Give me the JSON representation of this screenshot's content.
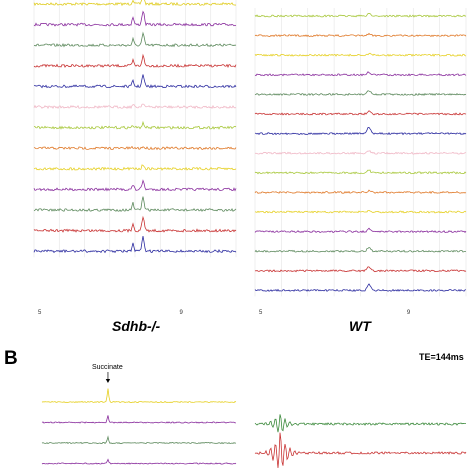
{
  "labels": {
    "sdhb": "Sdhb-/-",
    "wt": "WT",
    "panel_b": "B",
    "te": "TE=144ms",
    "succinate": "Succinate"
  },
  "chart_data": [
    {
      "type": "line",
      "panel": "A-left",
      "title": "Sdhb-/-",
      "x_ticks": [
        "5",
        "9"
      ],
      "grid": true,
      "series": [
        {
          "color": "#e0cc20",
          "peak_height": 0.6
        },
        {
          "color": "#8a2f9e",
          "peak_height": 1.0
        },
        {
          "color": "#5e8a5e",
          "peak_height": 0.8
        },
        {
          "color": "#c83232",
          "peak_height": 0.7
        },
        {
          "color": "#2c2ca0",
          "peak_height": 0.8
        },
        {
          "color": "#f0b8c6",
          "peak_height": 0.3
        },
        {
          "color": "#a8c83c",
          "peak_height": 0.3
        },
        {
          "color": "#e07a2a",
          "peak_height": 0.1
        },
        {
          "color": "#e6d024",
          "peak_height": 0.3
        },
        {
          "color": "#8a2f9e",
          "peak_height": 0.6
        },
        {
          "color": "#5e8a5e",
          "peak_height": 0.9
        },
        {
          "color": "#c83232",
          "peak_height": 1.0
        },
        {
          "color": "#2c2ca0",
          "peak_height": 1.0
        }
      ]
    },
    {
      "type": "line",
      "panel": "A-right",
      "title": "WT",
      "x_ticks": [
        "5",
        "9"
      ],
      "grid": true,
      "series": [
        {
          "color": "#a8c83c",
          "peak_height": 0.2
        },
        {
          "color": "#e07a2a",
          "peak_height": 0.1
        },
        {
          "color": "#e6d024",
          "peak_height": 0.1
        },
        {
          "color": "#8a2f9e",
          "peak_height": 0.2
        },
        {
          "color": "#5e8a5e",
          "peak_height": 0.3
        },
        {
          "color": "#c83232",
          "peak_height": 0.2
        },
        {
          "color": "#2c2ca0",
          "peak_height": 0.5
        },
        {
          "color": "#f0b8c6",
          "peak_height": 0.2
        },
        {
          "color": "#a8c83c",
          "peak_height": 0.2
        },
        {
          "color": "#e07a2a",
          "peak_height": 0.1
        },
        {
          "color": "#e6d024",
          "peak_height": 0.1
        },
        {
          "color": "#8a2f9e",
          "peak_height": 0.2
        },
        {
          "color": "#5e8a5e",
          "peak_height": 0.3
        },
        {
          "color": "#c83232",
          "peak_height": 0.3
        },
        {
          "color": "#2c2ca0",
          "peak_height": 0.5
        }
      ]
    },
    {
      "type": "line",
      "panel": "B-left",
      "annotation": "Succinate",
      "series": [
        {
          "color": "#e6d024",
          "peak_height": 1.0
        },
        {
          "color": "#8a2f9e",
          "peak_height": 0.5
        },
        {
          "color": "#5e8a5e",
          "peak_height": 0.4
        },
        {
          "color": "#8a2f9e",
          "peak_height": 0.3
        }
      ]
    },
    {
      "type": "line",
      "panel": "B-right",
      "series": [
        {
          "color": "#3c8a3c",
          "peak_height": 0.5
        },
        {
          "color": "#c83232",
          "peak_height": 1.0
        }
      ]
    }
  ]
}
